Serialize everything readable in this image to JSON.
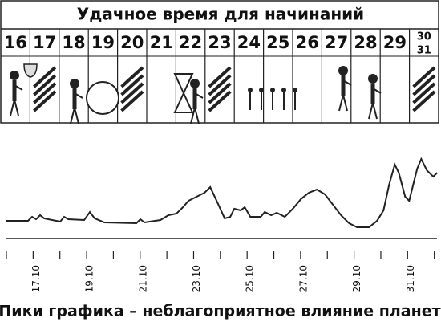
{
  "header": {
    "title": "Удачное время для начинаний",
    "days": [
      "16",
      "17",
      "18",
      "19",
      "20",
      "21",
      "22",
      "23",
      "24",
      "25",
      "26",
      "27",
      "28",
      "29"
    ],
    "last_cell": [
      "30",
      "31"
    ]
  },
  "chart_data": {
    "type": "line",
    "caption": "Пики графика – неблагоприятное влияние планет",
    "x": [
      16.0,
      16.81,
      16.96,
      17.11,
      17.26,
      17.41,
      18.01,
      18.16,
      18.31,
      18.91,
      19.12,
      19.3,
      19.66,
      20.86,
      21.01,
      21.16,
      21.76,
      22.06,
      22.36,
      22.6,
      22.81,
      23.11,
      23.41,
      23.62,
      23.86,
      24.16,
      24.37,
      24.52,
      24.76,
      24.91,
      25.12,
      25.51,
      25.66,
      25.9,
      26.11,
      26.41,
      26.71,
      27.01,
      27.31,
      27.61,
      27.91,
      28.21,
      28.51,
      28.81,
      29.11,
      29.56,
      29.86,
      30.1,
      30.31,
      30.52,
      30.67,
      30.91,
      31.06,
      31.21,
      31.36,
      31.51,
      31.72,
      31.96,
      32.11
    ],
    "series": [
      {
        "color": "#222222",
        "values": [
          20.6,
          20.6,
          25.2,
          22.4,
          27.1,
          23.4,
          19.6,
          25.2,
          22.4,
          21.5,
          30.8,
          23.4,
          18.7,
          17.8,
          22.4,
          18.7,
          21.5,
          27.1,
          29.0,
          36.4,
          43.9,
          48.6,
          53.3,
          59.8,
          43.9,
          23.4,
          25.2,
          34.6,
          32.7,
          36.4,
          25.2,
          25.2,
          30.8,
          27.1,
          29.9,
          25.2,
          34.6,
          45.8,
          53.3,
          57.0,
          51.4,
          39.3,
          27.1,
          17.8,
          13.1,
          13.1,
          20.6,
          32.7,
          62.6,
          86.0,
          76.6,
          48.6,
          43.9,
          62.6,
          81.3,
          92.5,
          79.4,
          72.0,
          76.6
        ]
      }
    ],
    "xlim": [
      16,
      32.1
    ],
    "ylim": [
      0,
      100
    ],
    "xticks": [
      {
        "value": 17,
        "label": "17.10"
      },
      {
        "value": 19,
        "label": "19.10"
      },
      {
        "value": 21,
        "label": "21.10"
      },
      {
        "value": 23,
        "label": "23.10"
      },
      {
        "value": 25,
        "label": "25.10"
      },
      {
        "value": 27,
        "label": "27.10"
      },
      {
        "value": 29,
        "label": "29.10"
      },
      {
        "value": 31,
        "label": "31.10"
      }
    ],
    "xminor": [
      16,
      18,
      20,
      22,
      24,
      26,
      28,
      30,
      32
    ]
  }
}
